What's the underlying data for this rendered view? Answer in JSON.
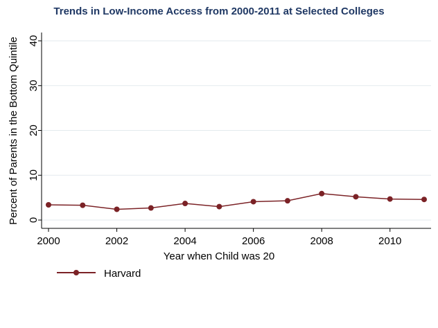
{
  "chart_data": {
    "type": "line",
    "title": "Trends in Low-Income Access from 2000-2011 at Selected Colleges",
    "xlabel": "Year when Child was 20",
    "ylabel": "Percent of Parents in the Bottom Quintile",
    "xlim": [
      2000,
      2011
    ],
    "ylim": [
      0,
      40
    ],
    "xticks": [
      "2000",
      "2002",
      "2004",
      "2006",
      "2008",
      "2010"
    ],
    "yticks": [
      "0",
      "10",
      "20",
      "30",
      "40"
    ],
    "grid": true,
    "legend_position": "bottom-left",
    "colors": {
      "series": "#7b2226",
      "grid": "#e3eaed",
      "axis": "#000000"
    },
    "series": [
      {
        "name": "Harvard",
        "x": [
          2000,
          2001,
          2002,
          2003,
          2004,
          2005,
          2006,
          2007,
          2008,
          2009,
          2010,
          2011
        ],
        "y": [
          3.4,
          3.3,
          2.4,
          2.7,
          3.7,
          3.0,
          4.1,
          4.3,
          5.9,
          5.2,
          4.7,
          4.6
        ]
      }
    ]
  }
}
